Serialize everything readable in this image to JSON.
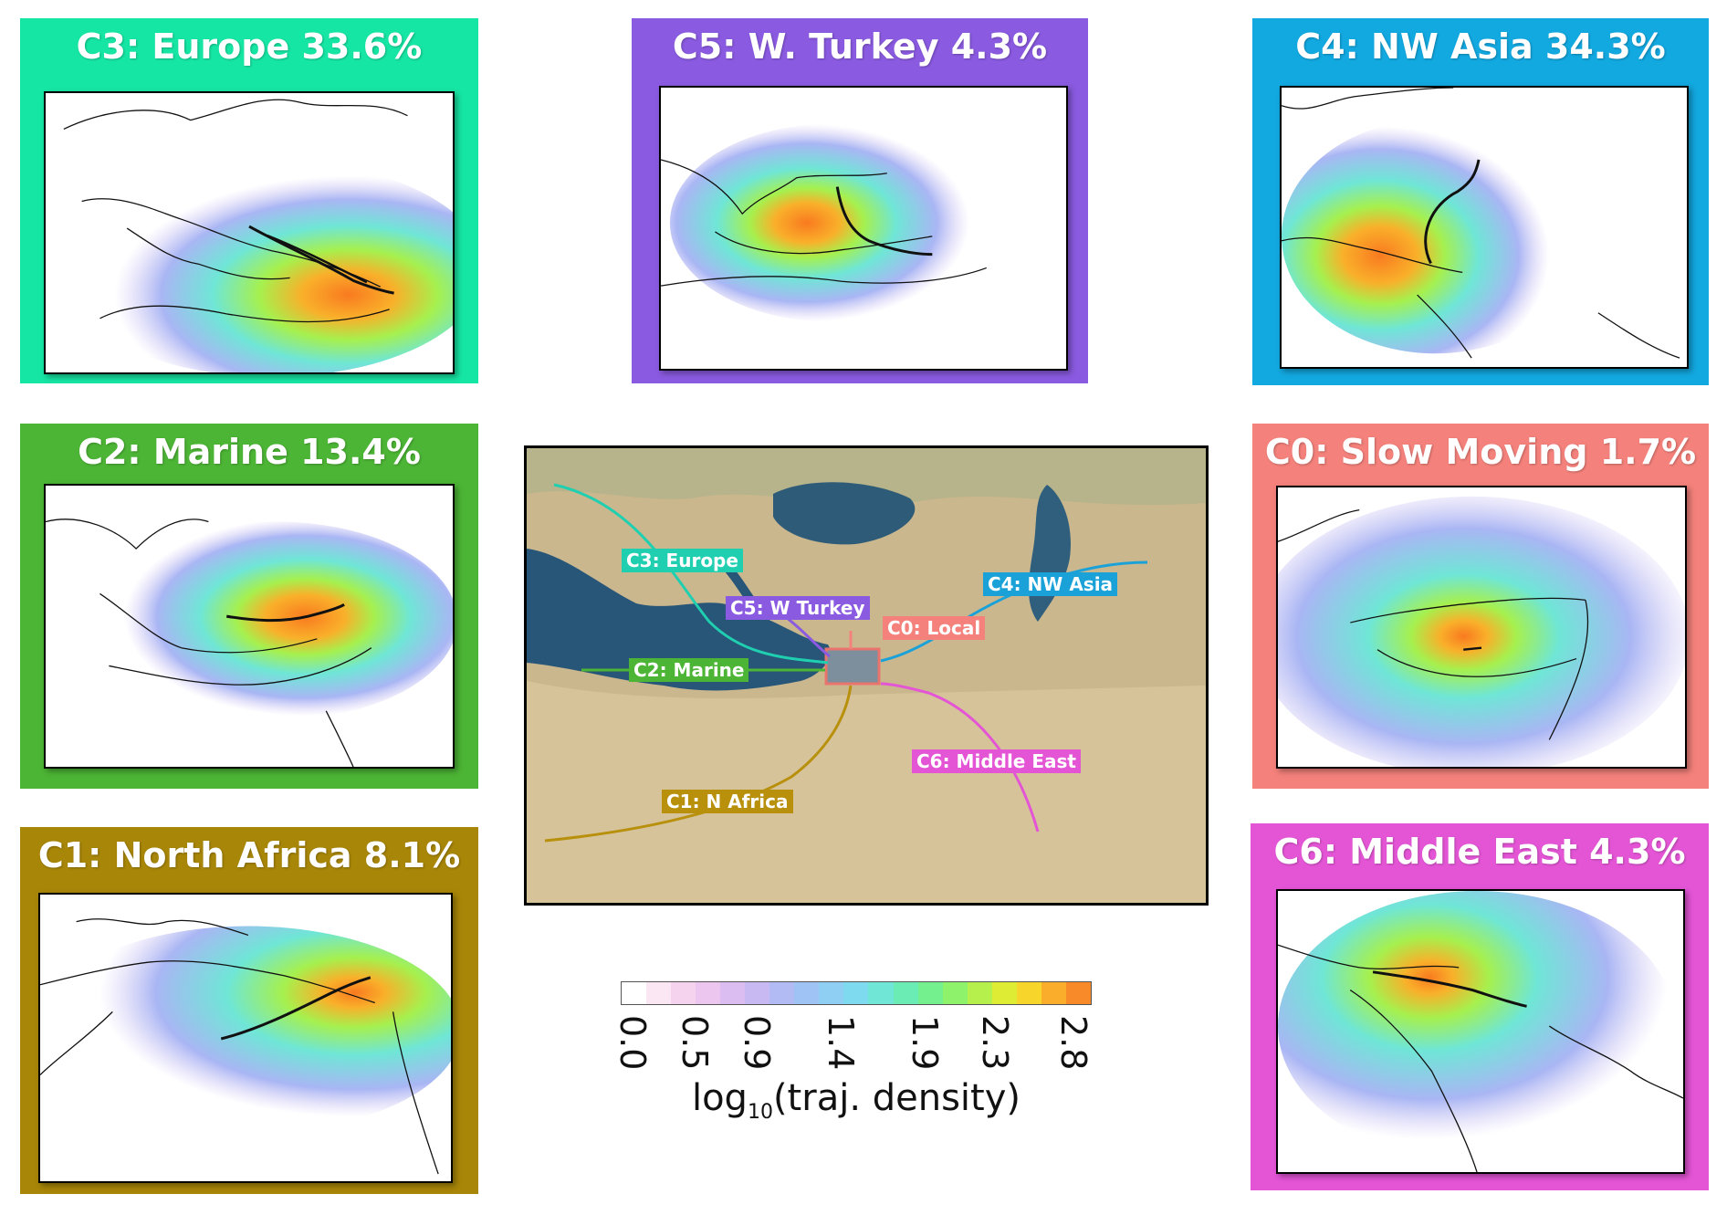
{
  "panels": {
    "c3": {
      "title": "C3: Europe 33.6%",
      "color": "#16e6a4"
    },
    "c5": {
      "title": "C5: W. Turkey 4.3%",
      "color": "#8a5ae0"
    },
    "c4": {
      "title": "C4: NW Asia 34.3%",
      "color": "#12a8e0"
    },
    "c2": {
      "title": "C2: Marine 13.4%",
      "color": "#4cb535"
    },
    "c0": {
      "title": "C0: Slow Moving 1.7%",
      "color": "#f4817b"
    },
    "c1": {
      "title": "C1: North Africa 8.1%",
      "color": "#a88608"
    },
    "c6": {
      "title": "C6: Middle East 4.3%",
      "color": "#e455d6"
    }
  },
  "center_map": {
    "routes": [
      {
        "label": "C3: Europe",
        "color": "#1fcfb0"
      },
      {
        "label": "C5: W Turkey",
        "color": "#8a5ae0"
      },
      {
        "label": "C4: NW Asia",
        "color": "#1aa2d8"
      },
      {
        "label": "C0: Local",
        "color": "#f4817b"
      },
      {
        "label": "C2: Marine",
        "color": "#4cb535"
      },
      {
        "label": "C6: Middle East",
        "color": "#e455d6"
      },
      {
        "label": "C1: N Africa",
        "color": "#b8900c"
      }
    ]
  },
  "colorbar": {
    "ticks": [
      "0.0",
      "0.5",
      "0.9",
      "1.4",
      "1.9",
      "2.3",
      "2.8"
    ],
    "label_main": "log",
    "label_sub": "10",
    "label_rest": "(traj. density)",
    "colors": [
      "#ffffff",
      "#fbe6f3",
      "#f5d3ee",
      "#ecc6ef",
      "#dcbdf1",
      "#c9b9f3",
      "#b3bbf4",
      "#9fc3f5",
      "#8fcff3",
      "#7edbef",
      "#6fe6d6",
      "#6aecb4",
      "#74f08f",
      "#8ef26a",
      "#b5f04c",
      "#dfec34",
      "#f7d52a",
      "#f9ad2a",
      "#f98a2a"
    ]
  }
}
